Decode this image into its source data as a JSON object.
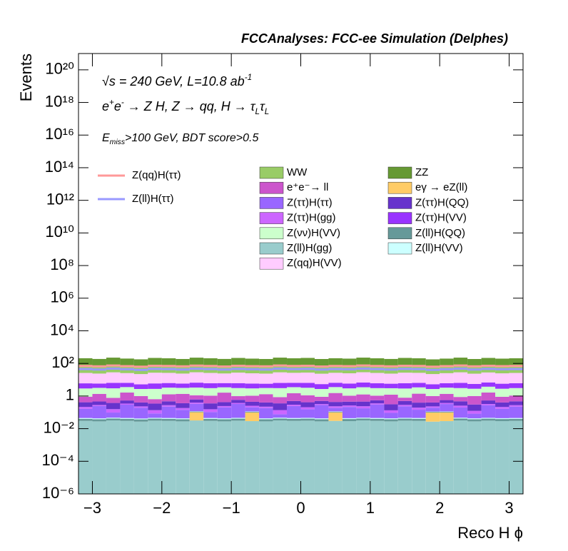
{
  "chart_data": {
    "type": "stacked_histogram",
    "title": "FCCAnalyses: FCC-ee Simulation (Delphes)",
    "annotations": [
      [
        "√s = 240 GeV, L=10.8 ab",
        {
          "sup": "-1"
        }
      ],
      [
        "e",
        {
          "sup": "+"
        },
        "e",
        {
          "sup": "-"
        },
        " → Z H, Z  → qq, H  → τ",
        {
          "sub": "L"
        },
        "τ",
        {
          "sub": "L"
        }
      ],
      [
        "E",
        {
          "sub": "miss"
        },
        ">100 GeV, BDT score>0.5"
      ]
    ],
    "x_label": "Reco H ϕ",
    "y_label": "Events",
    "ylog": true,
    "xlim": [
      -3.2,
      3.2
    ],
    "ylim": [
      1e-06,
      1e+21
    ],
    "xticks": [
      {
        "value": -3,
        "label": "−3"
      },
      {
        "value": -2,
        "label": "−2"
      },
      {
        "value": -1,
        "label": "−1"
      },
      0,
      1,
      2,
      3
    ],
    "yticks": [
      {
        "value": 1e-06,
        "label": "10⁻⁶"
      },
      {
        "value": 0.0001,
        "label": "10⁻⁴"
      },
      {
        "value": 0.01,
        "label": "10⁻²"
      },
      1,
      {
        "value": 100,
        "label": "10²"
      },
      {
        "value": 10000.0,
        "label": "10⁴"
      },
      {
        "value": 1000000.0,
        "label": "10⁶"
      },
      {
        "value": 100000000.0,
        "label": "10⁸"
      },
      {
        "value": 10000000000.0,
        "label": "10¹⁰"
      },
      {
        "value": 1000000000000.0,
        "label": "10¹²"
      },
      {
        "value": 100000000000000.0,
        "label": "10¹⁴"
      },
      {
        "value": 1e+16,
        "label": "10¹⁶"
      },
      {
        "value": 1e+18,
        "label": "10¹⁸"
      },
      {
        "value": 1e+20,
        "label": "10²⁰"
      }
    ],
    "bins": [
      -3.2,
      -3.0,
      -2.8,
      -2.6,
      -2.4,
      -2.2,
      -2.0,
      -1.8,
      -1.6,
      -1.4,
      -1.2,
      -1.0,
      -0.8,
      -0.6,
      -0.4,
      -0.2,
      0,
      0.2,
      0.4,
      0.6,
      0.8,
      1.0,
      1.2,
      1.4,
      1.6,
      1.8,
      2.0,
      2.2,
      2.4,
      2.6,
      2.8,
      3.0,
      3.2
    ],
    "stack_order": [
      12,
      5,
      11,
      13,
      6,
      8,
      7,
      4,
      10,
      9,
      14,
      2,
      3
    ],
    "series": [
      {
        "name": "Z(qq)H(ττ)",
        "style": "line",
        "color": "#ff9999",
        "values": [
          70,
          66,
          74,
          68,
          63,
          72,
          70,
          66,
          73,
          70,
          65,
          72,
          68,
          66,
          74,
          70,
          72,
          65,
          70,
          68,
          74,
          70,
          66,
          72,
          70,
          63,
          68,
          74,
          66,
          72,
          68,
          70
        ]
      },
      {
        "name": "Z(ll)H(ττ)",
        "style": "line",
        "color": "#9999ff",
        "values": [
          45,
          42,
          48,
          44,
          40,
          46,
          45,
          42,
          47,
          45,
          42,
          46,
          44,
          42,
          48,
          45,
          46,
          42,
          45,
          44,
          48,
          45,
          42,
          46,
          45,
          40,
          44,
          48,
          42,
          46,
          44,
          45
        ]
      },
      {
        "name": "WW",
        "style": "fill",
        "color": "#99cc66",
        "values": [
          52,
          47,
          55,
          49,
          45,
          53,
          50,
          46,
          54,
          51,
          47,
          52,
          48,
          46,
          55,
          50,
          53,
          46,
          51,
          48,
          55,
          50,
          47,
          53,
          50,
          44,
          48,
          55,
          46,
          52,
          48,
          51
        ]
      },
      {
        "name": "ZZ",
        "style": "fill",
        "color": "#669933",
        "values": [
          130,
          117,
          143,
          124,
          111,
          137,
          130,
          117,
          143,
          130,
          117,
          137,
          124,
          117,
          143,
          130,
          137,
          117,
          130,
          124,
          143,
          130,
          117,
          137,
          130,
          111,
          124,
          143,
          117,
          137,
          124,
          130
        ]
      },
      {
        "name": "e⁺e⁻→ ll",
        "style": "fill",
        "color": "#cc55cc",
        "values": [
          0.5,
          0.9,
          0.4,
          1.1,
          0.6,
          0.3,
          0.8,
          1.0,
          0.5,
          0.7,
          1.2,
          0.4,
          0.6,
          0.9,
          0.5,
          1.0,
          0.7,
          0.4,
          1.1,
          0.6,
          0.8,
          0.5,
          0.9,
          0.3,
          1.0,
          0.6,
          0.8,
          0.4,
          0.7,
          1.1,
          0.5,
          0.6
        ]
      },
      {
        "name": "eγ → eZ(ll)",
        "style": "fill",
        "color": "#ffcc66",
        "values": [
          0,
          0,
          0,
          0,
          0,
          0,
          0,
          0,
          0.07,
          0,
          0,
          0,
          0.07,
          0,
          0,
          0,
          0,
          0,
          0.07,
          0,
          0,
          0,
          0,
          0,
          0,
          0.07,
          0.07,
          0,
          0,
          0,
          0,
          0
        ]
      },
      {
        "name": "Z(ττ)H(ττ)",
        "style": "fill",
        "color": "#9966ff",
        "values": [
          0.12,
          0.2,
          0.05,
          0.25,
          0.15,
          0.04,
          0.18,
          0.1,
          0.22,
          0.06,
          0.16,
          0.28,
          0.09,
          0.14,
          0.03,
          0.2,
          0.11,
          0.24,
          0.07,
          0.17,
          0.13,
          0.26,
          0.05,
          0.19,
          0.1,
          0.08,
          0.21,
          0.15,
          0.04,
          0.23,
          0.12,
          0.18
        ]
      },
      {
        "name": "Z(ττ)H(QQ)",
        "style": "fill",
        "color": "#6633cc",
        "values": [
          0.2,
          0.18,
          0.22,
          0.19,
          0.17,
          0.21,
          0.2,
          0.18,
          0.22,
          0.2,
          0.18,
          0.21,
          0.19,
          0.18,
          0.22,
          0.2,
          0.21,
          0.18,
          0.2,
          0.19,
          0.22,
          0.2,
          0.18,
          0.21,
          0.2,
          0.17,
          0.19,
          0.22,
          0.18,
          0.21,
          0.19,
          0.2
        ]
      },
      {
        "name": "Z(ττ)H(gg)",
        "style": "fill",
        "color": "#cc66ff",
        "values": [
          0.05,
          0.04,
          0.06,
          0.05,
          0.04,
          0.05,
          0.05,
          0.04,
          0.06,
          0.05,
          0.04,
          0.05,
          0.05,
          0.04,
          0.06,
          0.05,
          0.05,
          0.04,
          0.05,
          0.05,
          0.06,
          0.05,
          0.04,
          0.05,
          0.05,
          0.04,
          0.05,
          0.06,
          0.04,
          0.05,
          0.05,
          0.05
        ]
      },
      {
        "name": "Z(ττ)H(VV)",
        "style": "fill",
        "color": "#9933ff",
        "values": [
          3.1,
          2.7,
          3.4,
          2.9,
          2.5,
          3.2,
          3.0,
          2.7,
          3.3,
          3.0,
          2.8,
          3.1,
          2.9,
          2.6,
          3.3,
          3.0,
          3.2,
          2.7,
          3.0,
          2.9,
          3.3,
          3.0,
          2.7,
          3.2,
          3.0,
          2.6,
          2.9,
          3.3,
          2.7,
          3.1,
          2.9,
          3.0
        ]
      },
      {
        "name": "Z(νν)H(VV)",
        "style": "fill",
        "color": "#ccffcc",
        "values": [
          2.0,
          1.8,
          2.2,
          1.9,
          1.7,
          2.1,
          2.0,
          1.8,
          2.2,
          2.0,
          1.8,
          2.1,
          1.9,
          1.8,
          2.2,
          2.0,
          2.1,
          1.8,
          2.0,
          1.9,
          2.2,
          2.0,
          1.8,
          2.1,
          2.0,
          1.7,
          1.9,
          2.2,
          1.8,
          2.1,
          1.9,
          2.0
        ]
      },
      {
        "name": "Z(ll)H(QQ)",
        "style": "fill",
        "color": "#669999",
        "values": [
          0.01,
          0.01,
          0.01,
          0.01,
          0.01,
          0.01,
          0.01,
          0.01,
          0.01,
          0.01,
          0.01,
          0.01,
          0.01,
          0.01,
          0.01,
          0.01,
          0.01,
          0.01,
          0.01,
          0.01,
          0.01,
          0.01,
          0.01,
          0.01,
          0.01,
          0.01,
          0.01,
          0.01,
          0.01,
          0.01,
          0.01,
          0.01
        ]
      },
      {
        "name": "Z(ll)H(gg)",
        "style": "fill",
        "color": "#99cccc",
        "values": [
          0.03,
          0.028,
          0.032,
          0.03,
          0.027,
          0.031,
          0.03,
          0.028,
          0.032,
          0.03,
          0.028,
          0.031,
          0.029,
          0.028,
          0.032,
          0.03,
          0.031,
          0.028,
          0.03,
          0.029,
          0.032,
          0.03,
          0.028,
          0.031,
          0.03,
          0.027,
          0.029,
          0.032,
          0.028,
          0.031,
          0.029,
          0.03
        ]
      },
      {
        "name": "Z(ll)H(VV)",
        "style": "fill",
        "color": "#ccffff",
        "values": [
          0.005,
          0.005,
          0.005,
          0.005,
          0.005,
          0.005,
          0.005,
          0.005,
          0.005,
          0.005,
          0.005,
          0.005,
          0.005,
          0.005,
          0.005,
          0.005,
          0.005,
          0.005,
          0.005,
          0.005,
          0.005,
          0.005,
          0.005,
          0.005,
          0.005,
          0.005,
          0.005,
          0.005,
          0.005,
          0.005,
          0.005,
          0.005
        ]
      },
      {
        "name": "Z(qq)H(VV)",
        "style": "fill",
        "color": "#ffccff",
        "values": [
          20,
          18,
          22,
          19,
          17,
          21,
          20,
          18,
          22,
          20,
          18,
          21,
          19,
          18,
          22,
          20,
          21,
          18,
          20,
          19,
          22,
          20,
          18,
          21,
          20,
          17,
          19,
          22,
          18,
          21,
          19,
          20
        ]
      }
    ]
  }
}
